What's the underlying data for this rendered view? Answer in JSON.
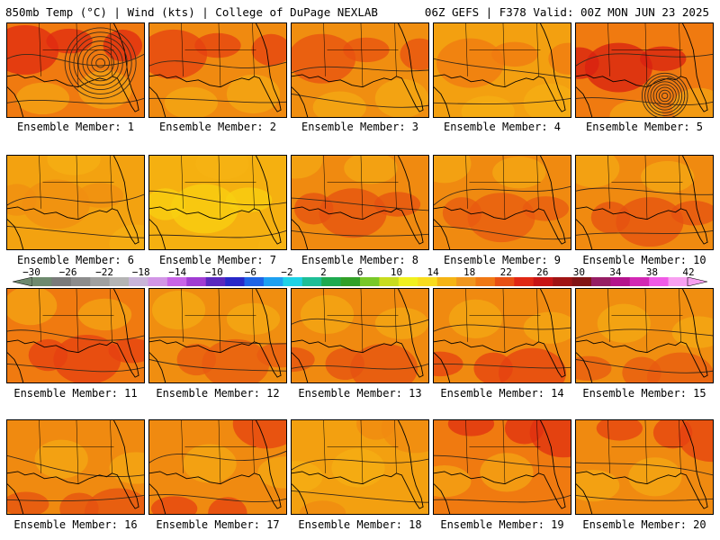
{
  "header": {
    "left": "850mb Temp (°C) | Wind (kts) | College of DuPage NEXLAB",
    "right": "06Z GEFS | F378 Valid: 00Z MON JUN 23 2025"
  },
  "panels": [
    {
      "label": "Ensemble Member: 1",
      "cyclone": true,
      "base": "#f07a10",
      "warm": "#e02a10"
    },
    {
      "label": "Ensemble Member: 2",
      "cyclone": false,
      "base": "#f08a10",
      "warm": "#e64010"
    },
    {
      "label": "Ensemble Member: 3",
      "cyclone": false,
      "base": "#f08e10",
      "warm": "#e85010"
    },
    {
      "label": "Ensemble Member: 4",
      "cyclone": false,
      "base": "#f3a010",
      "warm": "#f07a10"
    },
    {
      "label": "Ensemble Member: 5",
      "cyclone": true,
      "base": "#f07a10",
      "warm": "#d82010"
    },
    {
      "label": "Ensemble Member: 6",
      "cyclone": false,
      "base": "#f3a210",
      "warm": "#f08e10"
    },
    {
      "label": "Ensemble Member: 7",
      "cyclone": false,
      "base": "#f5b010",
      "warm": "#f8d010"
    },
    {
      "label": "Ensemble Member: 8",
      "cyclone": false,
      "base": "#f08a10",
      "warm": "#e65010"
    },
    {
      "label": "Ensemble Member: 9",
      "cyclone": false,
      "base": "#f08a10",
      "warm": "#e85a10"
    },
    {
      "label": "Ensemble Member: 10",
      "cyclone": false,
      "base": "#f08a10",
      "warm": "#e65010"
    },
    {
      "label": "Ensemble Member: 11",
      "cyclone": false,
      "base": "#f07a10",
      "warm": "#e64010"
    },
    {
      "label": "Ensemble Member: 12",
      "cyclone": false,
      "base": "#f08e10",
      "warm": "#e85a10"
    },
    {
      "label": "Ensemble Member: 13",
      "cyclone": false,
      "base": "#f08a10",
      "warm": "#e65010"
    },
    {
      "label": "Ensemble Member: 14",
      "cyclone": false,
      "base": "#f08a10",
      "warm": "#e64010"
    },
    {
      "label": "Ensemble Member: 15",
      "cyclone": false,
      "base": "#f08e10",
      "warm": "#e85a10"
    },
    {
      "label": "Ensemble Member: 16",
      "cyclone": false,
      "base": "#f08a10",
      "warm": "#e65010"
    },
    {
      "label": "Ensemble Member: 17",
      "cyclone": false,
      "base": "#f08a10",
      "warm": "#e64010"
    },
    {
      "label": "Ensemble Member: 18",
      "cyclone": false,
      "base": "#f3a010",
      "warm": "#f08a10"
    },
    {
      "label": "Ensemble Member: 19",
      "cyclone": false,
      "base": "#f07a10",
      "warm": "#e03010"
    },
    {
      "label": "Ensemble Member: 20",
      "cyclone": false,
      "base": "#f08a10",
      "warm": "#e64010"
    }
  ],
  "colorbar": {
    "ticks": [
      "−30",
      "−26",
      "−22",
      "−18",
      "−14",
      "−10",
      "−6",
      "−2",
      "2",
      "6",
      "10",
      "14",
      "18",
      "22",
      "26",
      "30",
      "34",
      "38",
      "42"
    ],
    "colors": [
      "#6e8a6e",
      "#7a7a7a",
      "#8c8c8c",
      "#a0a0a0",
      "#b4b4b4",
      "#c8b4d8",
      "#d296e6",
      "#c864e6",
      "#a03cd2",
      "#5a28be",
      "#2828c8",
      "#1e64e6",
      "#1ea0f0",
      "#1ed2e6",
      "#1ebe96",
      "#1eaa50",
      "#32a028",
      "#78c828",
      "#c8dc1e",
      "#f0f01e",
      "#f8dc1e",
      "#f5b414",
      "#f0961e",
      "#f07814",
      "#e85014",
      "#e02814",
      "#c81414",
      "#a01414",
      "#821414",
      "#961e64",
      "#b4148c",
      "#d228b4",
      "#f05ae6",
      "#f8a0f0"
    ]
  }
}
